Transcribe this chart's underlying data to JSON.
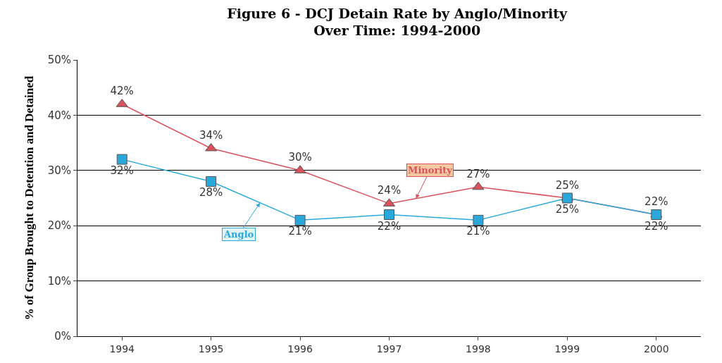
{
  "chart_data": {
    "type": "line",
    "title": "Figure 6 - DCJ Detain Rate by Anglo/Minority\nOver Time: 1994-2000",
    "ylabel": "% of Group Brought to Detention and Detained",
    "categories": [
      "1994",
      "1995",
      "1996",
      "1997",
      "1998",
      "1999",
      "2000"
    ],
    "series": [
      {
        "name": "Minority",
        "color": "#d9525e",
        "marker": "triangle",
        "values": [
          42,
          34,
          30,
          24,
          27,
          25,
          22
        ],
        "value_labels": [
          "42%",
          "34%",
          "30%",
          "24%",
          "27%",
          "25%",
          "22%"
        ]
      },
      {
        "name": "Anglo",
        "color": "#2aa8dc",
        "marker": "square",
        "values": [
          32,
          28,
          21,
          22,
          21,
          25,
          22
        ],
        "value_labels": [
          "32%",
          "28%",
          "21%",
          "22%",
          "21%",
          "25%",
          "22%"
        ]
      }
    ],
    "ylim": [
      0,
      50
    ],
    "yticks": [
      {
        "value": 0,
        "label": "0%"
      },
      {
        "value": 10,
        "label": "10%"
      },
      {
        "value": 20,
        "label": "20%"
      },
      {
        "value": 30,
        "label": "30%"
      },
      {
        "value": 40,
        "label": "40%"
      },
      {
        "value": 50,
        "label": "50%"
      }
    ],
    "grid": "y",
    "legend": false
  }
}
